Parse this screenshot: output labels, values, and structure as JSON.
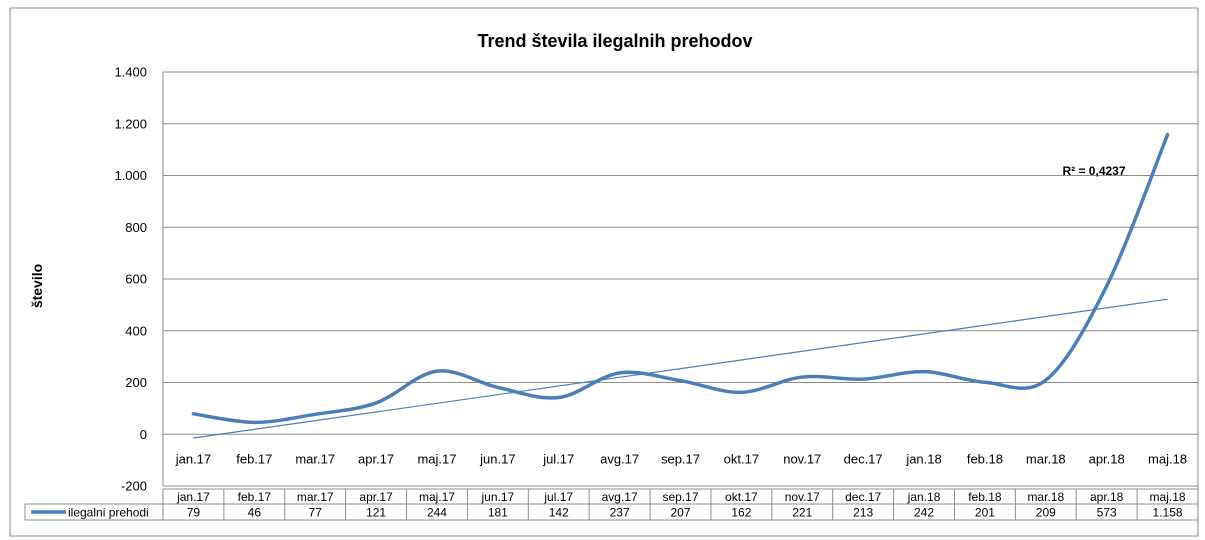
{
  "chart_data": {
    "type": "line",
    "title": "Trend števila ilegalnih prehodov",
    "xlabel": "",
    "ylabel": "število",
    "categories": [
      "jan.17",
      "feb.17",
      "mar.17",
      "apr.17",
      "maj.17",
      "jun.17",
      "jul.17",
      "avg.17",
      "sep.17",
      "okt.17",
      "nov.17",
      "dec.17",
      "jan.18",
      "feb.18",
      "mar.18",
      "apr.18",
      "maj.18"
    ],
    "series": [
      {
        "name": "ilegalni prehodi",
        "values": [
          79,
          46,
          77,
          121,
          244,
          181,
          142,
          237,
          207,
          162,
          221,
          213,
          242,
          201,
          209,
          573,
          1158
        ],
        "labels": [
          "79",
          "46",
          "77",
          "121",
          "244",
          "181",
          "142",
          "237",
          "207",
          "162",
          "221",
          "213",
          "242",
          "201",
          "209",
          "573",
          "1.158"
        ],
        "color": "#4a7ebb"
      }
    ],
    "trendline": {
      "type": "linear",
      "r_squared_label": "R² = 0,4237",
      "color": "#4a7ebb"
    },
    "ylim": [
      -200,
      1400
    ],
    "yticks": [
      -200,
      0,
      200,
      400,
      600,
      800,
      1000,
      1200,
      1400
    ],
    "ytick_labels": [
      "-200",
      "0",
      "200",
      "400",
      "600",
      "800",
      "1.000",
      "1.200",
      "1.400"
    ],
    "grid": true,
    "data_table": true,
    "legend": "data-table"
  }
}
